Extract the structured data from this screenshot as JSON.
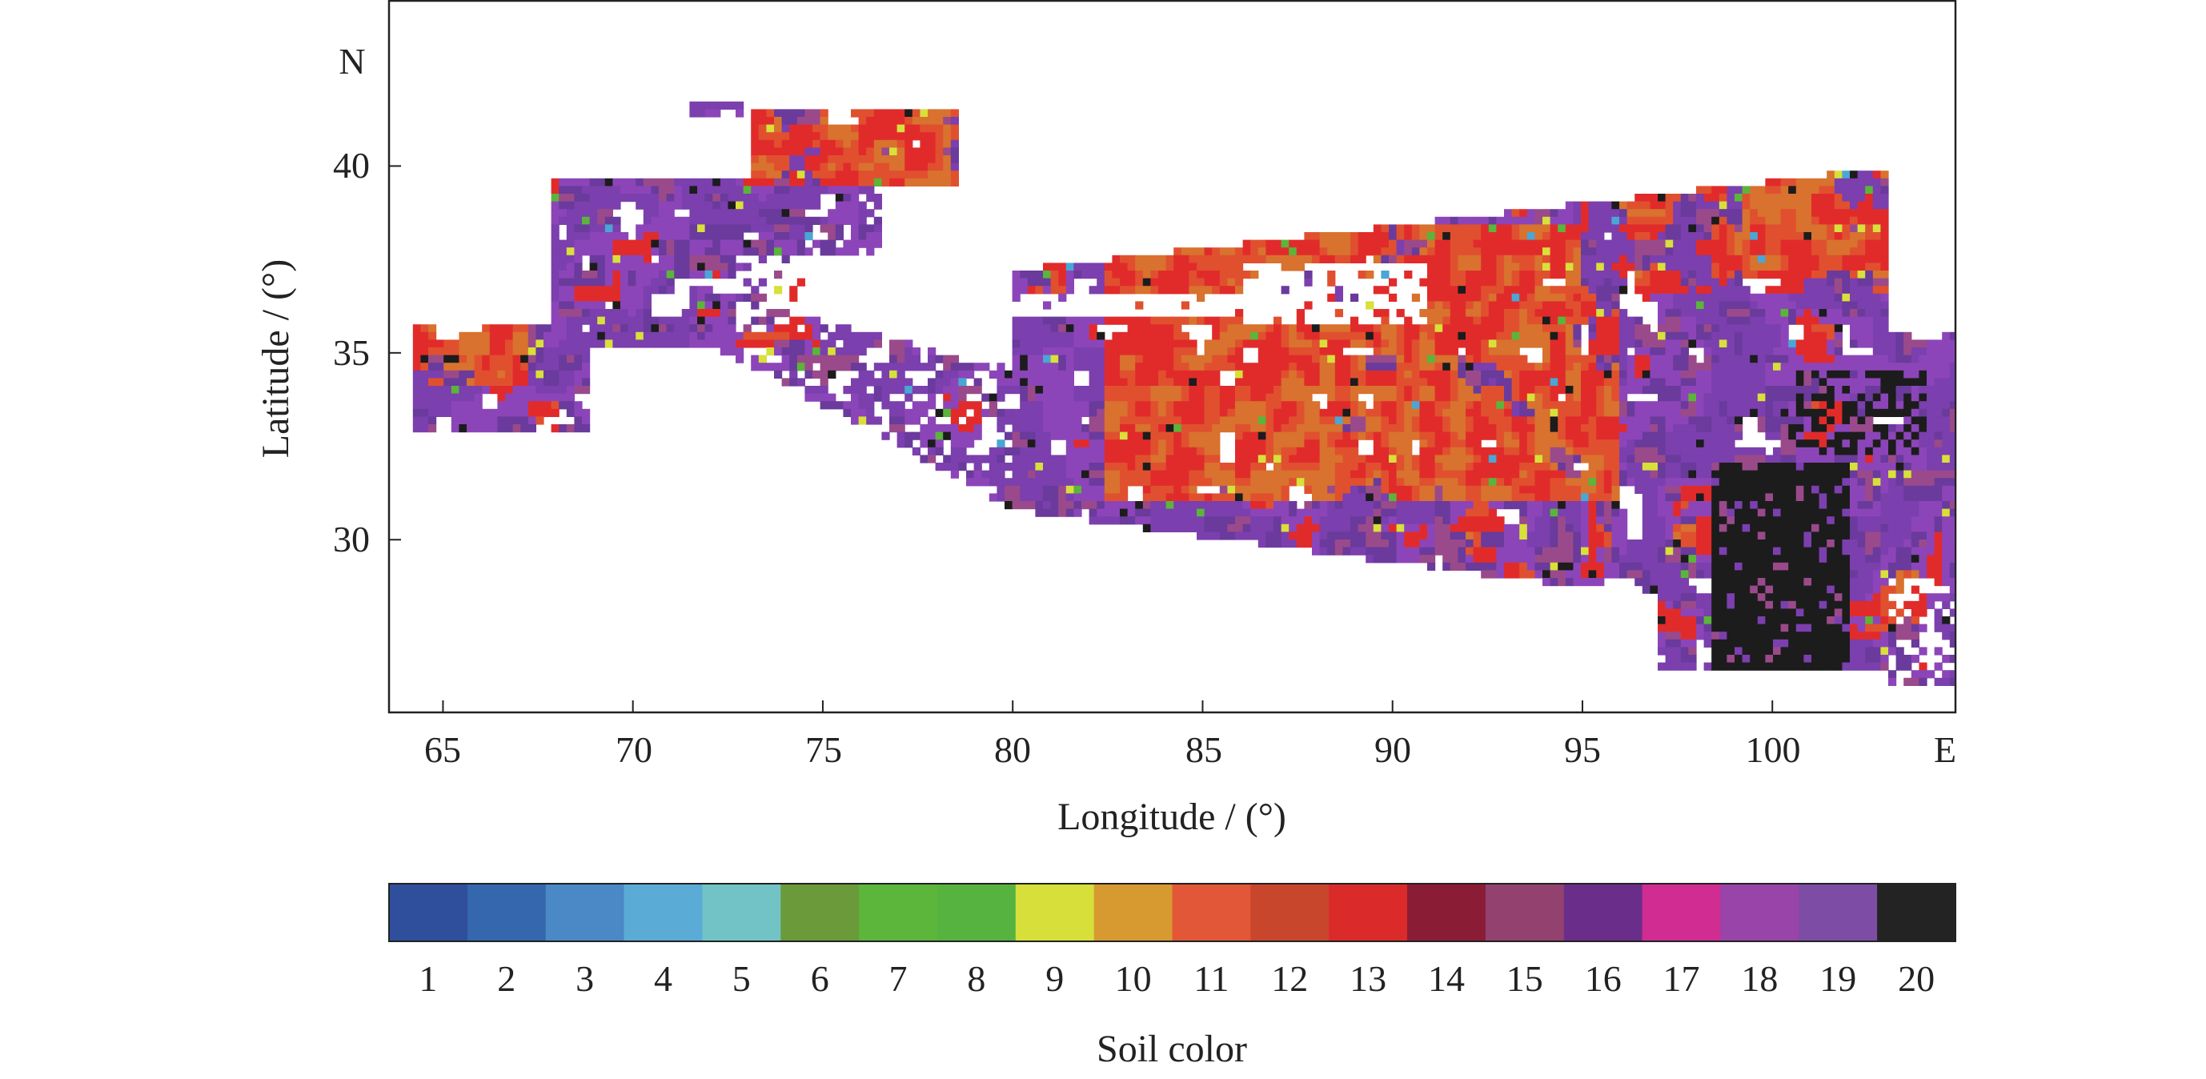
{
  "map": {
    "y_label": "Latitude / (°)",
    "x_label": "Longitude / (°)",
    "north_label": "N",
    "east_label": "E",
    "lat_ticks": [
      "40",
      "35",
      "30"
    ],
    "lon_ticks": [
      "65",
      "70",
      "75",
      "80",
      "85",
      "90",
      "95",
      "100"
    ],
    "lat_values": [
      40,
      35,
      30
    ],
    "lon_values": [
      65,
      70,
      75,
      80,
      85,
      90,
      95,
      100
    ],
    "lon_range": [
      63.6,
      104.8
    ],
    "lat_range": [
      25.4,
      44.4
    ],
    "colors": {
      "purple_main": "#7b3fae",
      "purple_mid": "#8c45b8",
      "violet": "#6a3a9c",
      "mauve": "#9a4a8a",
      "red": "#e12b2b",
      "red_orange": "#e0502f",
      "orange": "#d8722e",
      "dark_red": "#8a1e36",
      "black": "#1c1c1c",
      "yellow": "#d8e03a",
      "green": "#5ab53a",
      "cyan": "#4aa6d4",
      "frame": "#222222"
    }
  },
  "legend": {
    "title": "Soil color",
    "classes": [
      "1",
      "2",
      "3",
      "4",
      "5",
      "6",
      "7",
      "8",
      "9",
      "10",
      "11",
      "12",
      "13",
      "14",
      "15",
      "16",
      "17",
      "18",
      "19",
      "20"
    ],
    "class_colors": [
      "#2f4f9c",
      "#3467ad",
      "#4b88c6",
      "#5aabd5",
      "#72c3c5",
      "#6b9a3a",
      "#5db63c",
      "#57b33f",
      "#d7df3a",
      "#d69a30",
      "#e25737",
      "#c8462b",
      "#da2a2a",
      "#8a1d35",
      "#93426f",
      "#6b2d8a",
      "#d02c91",
      "#9844a8",
      "#7d4da6",
      "#232323"
    ]
  }
}
